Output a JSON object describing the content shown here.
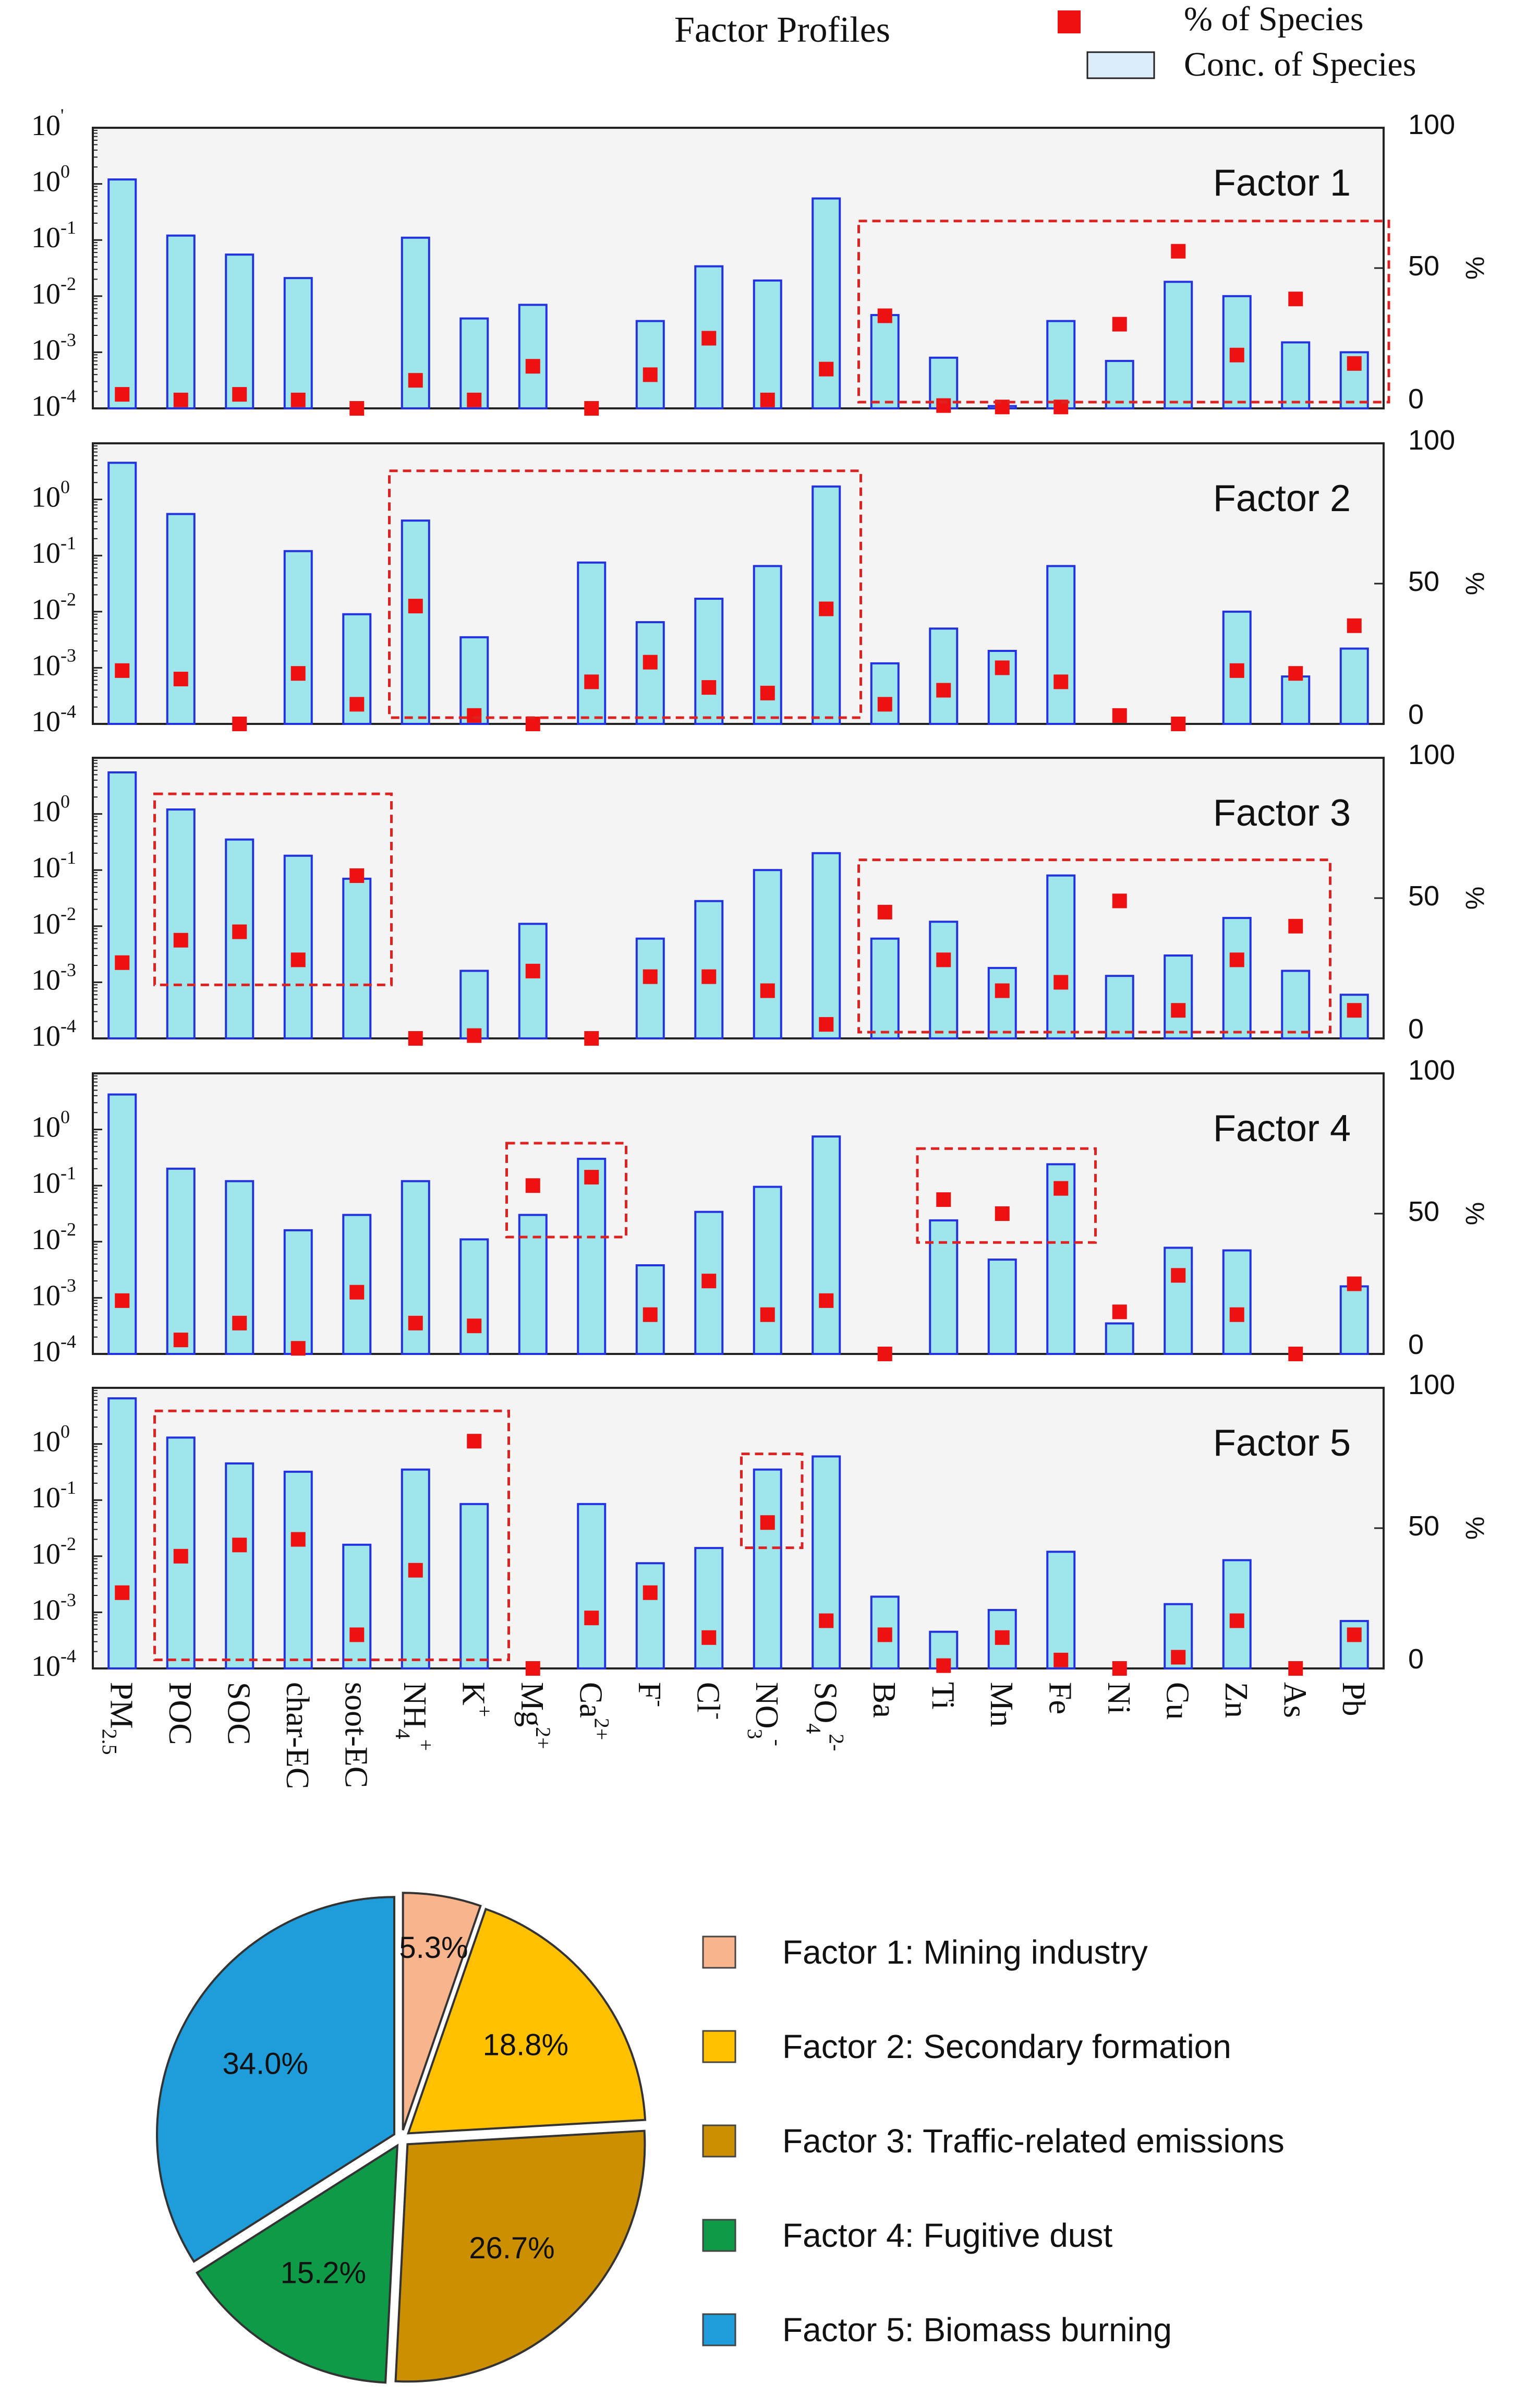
{
  "title": "Factor Profiles",
  "legend": {
    "points_label": "% of Species",
    "bars_label": "Conc. of Species",
    "points_color": "#ee1111",
    "bar_fill": "#9fe6ec",
    "bar_edge": "#2233dd"
  },
  "left_ticks": [
    {
      "base": "10",
      "exp": "1"
    },
    {
      "base": "10",
      "exp": "0"
    },
    {
      "base": "10",
      "exp": "-1"
    },
    {
      "base": "10",
      "exp": "-2"
    },
    {
      "base": "10",
      "exp": "-3"
    },
    {
      "base": "10",
      "exp": "-4"
    }
  ],
  "top_exp_override": "'",
  "right_ticks": [
    "100",
    "50",
    "0"
  ],
  "right_unit": "%",
  "species": [
    {
      "base": "PM",
      "sub": "2.5",
      "sup": ""
    },
    {
      "base": "POC",
      "sub": "",
      "sup": ""
    },
    {
      "base": "SOC",
      "sub": "",
      "sup": ""
    },
    {
      "base": "char-EC",
      "sub": "",
      "sup": ""
    },
    {
      "base": "soot-EC",
      "sub": "",
      "sup": ""
    },
    {
      "base": "NH",
      "sub": "4",
      "sup": "+"
    },
    {
      "base": "K",
      "sub": "",
      "sup": "+"
    },
    {
      "base": "Mg",
      "sub": "",
      "sup": "2+"
    },
    {
      "base": "Ca",
      "sub": "",
      "sup": "2+"
    },
    {
      "base": "F",
      "sub": "",
      "sup": "-"
    },
    {
      "base": "Cl",
      "sub": "",
      "sup": "-"
    },
    {
      "base": "NO",
      "sub": "3",
      "sup": "-"
    },
    {
      "base": "SO",
      "sub": "4",
      "sup": "2-"
    },
    {
      "base": "Ba",
      "sub": "",
      "sup": ""
    },
    {
      "base": "Ti",
      "sub": "",
      "sup": ""
    },
    {
      "base": "Mn",
      "sub": "",
      "sup": ""
    },
    {
      "base": "Fe",
      "sub": "",
      "sup": ""
    },
    {
      "base": "Ni",
      "sub": "",
      "sup": ""
    },
    {
      "base": "Cu",
      "sub": "",
      "sup": ""
    },
    {
      "base": "Zn",
      "sub": "",
      "sup": ""
    },
    {
      "base": "As",
      "sub": "",
      "sup": ""
    },
    {
      "base": "Pb",
      "sub": "",
      "sup": ""
    }
  ],
  "chart_data": [
    {
      "type": "bar+scatter",
      "name": "Factor 1",
      "y_left_scale": "log",
      "y_left_range": [
        0.0001,
        10
      ],
      "y_right_range": [
        0,
        100
      ],
      "y_right_label": "%",
      "conc": [
        1.2,
        0.12,
        0.055,
        0.021,
        null,
        0.11,
        0.004,
        0.007,
        null,
        0.0036,
        0.034,
        0.019,
        0.55,
        0.0046,
        0.0008,
        0.00011,
        0.0036,
        0.0007,
        0.018,
        0.01,
        0.0015,
        0.001
      ],
      "pct": [
        5,
        3,
        5,
        3,
        0,
        10,
        3,
        15,
        0,
        12,
        25,
        3,
        14,
        33,
        1,
        0.5,
        0.5,
        30,
        56,
        19,
        39,
        16
      ],
      "highlight_ranges": [
        [
          13,
          21
        ]
      ]
    },
    {
      "type": "bar+scatter",
      "name": "Factor 2",
      "y_left_scale": "log",
      "y_left_range": [
        0.0001,
        10
      ],
      "y_right_range": [
        0,
        100
      ],
      "y_right_label": "%",
      "conc": [
        4.5,
        0.55,
        null,
        0.12,
        0.009,
        0.42,
        0.0035,
        null,
        0.075,
        0.0065,
        0.017,
        0.065,
        1.7,
        0.0012,
        0.005,
        0.002,
        0.065,
        null,
        null,
        0.01,
        0.0007,
        0.0022
      ],
      "pct": [
        19,
        16,
        0,
        18,
        7,
        42,
        3,
        0,
        15,
        22,
        13,
        11,
        41,
        7,
        12,
        20,
        15,
        3,
        0,
        19,
        18,
        35
      ],
      "highlight_ranges": [
        [
          5,
          12
        ]
      ]
    },
    {
      "type": "bar+scatter",
      "name": "Factor 3",
      "y_left_scale": "log",
      "y_left_range": [
        0.0001,
        10
      ],
      "y_right_range": [
        0,
        100
      ],
      "y_right_label": "%",
      "conc": [
        5.5,
        1.2,
        0.35,
        0.18,
        0.07,
        null,
        0.0016,
        0.011,
        null,
        0.006,
        0.028,
        0.1,
        0.2,
        0.006,
        0.012,
        0.0018,
        0.08,
        0.0013,
        0.003,
        0.014,
        0.0016,
        0.0006
      ],
      "pct": [
        27,
        35,
        38,
        28,
        58,
        0,
        1,
        24,
        0,
        22,
        22,
        17,
        5,
        45,
        28,
        17,
        20,
        49,
        10,
        28,
        40,
        10
      ],
      "highlight_ranges": [
        [
          1,
          4
        ],
        [
          13,
          20
        ]
      ]
    },
    {
      "type": "bar+scatter",
      "name": "Factor 4",
      "y_left_scale": "log",
      "y_left_range": [
        0.0001,
        10
      ],
      "y_right_range": [
        0,
        100
      ],
      "y_right_label": "%",
      "conc": [
        4.2,
        0.2,
        0.12,
        0.016,
        0.03,
        0.12,
        0.011,
        0.03,
        0.3,
        0.0038,
        0.034,
        0.095,
        0.75,
        null,
        0.024,
        0.0048,
        0.24,
        0.00035,
        0.0078,
        0.007,
        null,
        0.0016
      ],
      "pct": [
        19,
        5,
        11,
        2,
        22,
        11,
        10,
        60,
        63,
        14,
        26,
        14,
        19,
        0,
        55,
        50,
        59,
        15,
        28,
        14,
        0,
        25
      ],
      "highlight_ranges": [
        [
          7,
          8
        ],
        [
          14,
          16
        ]
      ]
    },
    {
      "type": "bar+scatter",
      "name": "Factor 5",
      "y_left_scale": "log",
      "y_left_range": [
        0.0001,
        10
      ],
      "y_right_range": [
        0,
        100
      ],
      "y_right_label": "%",
      "conc": [
        6.5,
        1.3,
        0.45,
        0.32,
        0.016,
        0.35,
        0.085,
        null,
        0.085,
        0.0075,
        0.014,
        0.35,
        0.6,
        0.0019,
        0.00045,
        0.0011,
        0.012,
        null,
        0.0014,
        0.0085,
        null,
        0.0007
      ],
      "pct": [
        27,
        40,
        44,
        46,
        12,
        35,
        81,
        0,
        18,
        27,
        11,
        52,
        17,
        12,
        1,
        11,
        3,
        0,
        4,
        17,
        0,
        12
      ],
      "highlight_ranges": [
        [
          1,
          6
        ],
        [
          11,
          11
        ]
      ]
    },
    {
      "type": "pie",
      "labels": [
        "Factor 1: Mining industry",
        "Factor 2: Secondary formation",
        "Factor 3: Traffic-related emissions",
        "Factor 4: Fugitive dust",
        "Factor 5: Biomass burning"
      ],
      "values": [
        5.3,
        18.8,
        26.7,
        15.2,
        34.0
      ],
      "value_labels": [
        "5.3%",
        "18.8%",
        "26.7%",
        "15.2%",
        "34.0%"
      ],
      "colors": [
        "#f8b48c",
        "#ffc000",
        "#cc8f00",
        "#0f9a47",
        "#1f9ddb"
      ],
      "legend_position": "right"
    }
  ]
}
